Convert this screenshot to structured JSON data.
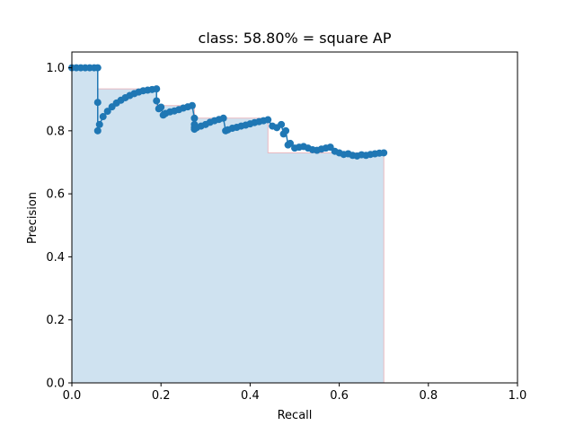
{
  "chart_data": {
    "type": "line",
    "title": "class: 58.80% = square AP",
    "xlabel": "Recall",
    "ylabel": "Precision",
    "xlim": [
      0,
      1
    ],
    "ylim": [
      0,
      1.05
    ],
    "xticks": [
      0.0,
      0.2,
      0.4,
      0.6,
      0.8,
      1.0
    ],
    "yticks": [
      0.0,
      0.2,
      0.4,
      0.6,
      0.8,
      1.0
    ],
    "xtick_labels": [
      "0.0",
      "0.2",
      "0.4",
      "0.6",
      "0.8",
      "1.0"
    ],
    "ytick_labels": [
      "0.0",
      "0.2",
      "0.4",
      "0.6",
      "0.8",
      "1.0"
    ],
    "grid": false,
    "colors": {
      "series": "#1f77b4",
      "fill": "#cfe2f0",
      "envelope": "#e8b8c0"
    },
    "series": [
      {
        "x": [
          0.0,
          0.01,
          0.02,
          0.03,
          0.04,
          0.05,
          0.058,
          0.058,
          0.058,
          0.062,
          0.07,
          0.08,
          0.09,
          0.1,
          0.11,
          0.12,
          0.13,
          0.14,
          0.15,
          0.16,
          0.17,
          0.18,
          0.19,
          0.19,
          0.195,
          0.2,
          0.205,
          0.21,
          0.22,
          0.23,
          0.24,
          0.25,
          0.26,
          0.27,
          0.275,
          0.275,
          0.275,
          0.275,
          0.28,
          0.29,
          0.3,
          0.31,
          0.32,
          0.33,
          0.34,
          0.345,
          0.35,
          0.36,
          0.37,
          0.38,
          0.39,
          0.4,
          0.41,
          0.42,
          0.43,
          0.44,
          0.45,
          0.46,
          0.47,
          0.475,
          0.48,
          0.485,
          0.49,
          0.5,
          0.51,
          0.52,
          0.53,
          0.54,
          0.55,
          0.56,
          0.57,
          0.58,
          0.59,
          0.6,
          0.61,
          0.62,
          0.63,
          0.64,
          0.65,
          0.66,
          0.67,
          0.68,
          0.69,
          0.7
        ],
        "y": [
          1.0,
          1.0,
          1.0,
          1.0,
          1.0,
          1.0,
          1.0,
          0.89,
          0.8,
          0.82,
          0.845,
          0.862,
          0.876,
          0.888,
          0.897,
          0.905,
          0.912,
          0.918,
          0.923,
          0.927,
          0.929,
          0.931,
          0.933,
          0.895,
          0.87,
          0.875,
          0.85,
          0.855,
          0.86,
          0.863,
          0.867,
          0.872,
          0.876,
          0.88,
          0.84,
          0.82,
          0.81,
          0.805,
          0.81,
          0.815,
          0.82,
          0.827,
          0.832,
          0.836,
          0.84,
          0.8,
          0.803,
          0.808,
          0.811,
          0.815,
          0.818,
          0.822,
          0.826,
          0.829,
          0.832,
          0.835,
          0.815,
          0.81,
          0.82,
          0.79,
          0.8,
          0.755,
          0.76,
          0.745,
          0.748,
          0.75,
          0.745,
          0.74,
          0.738,
          0.742,
          0.745,
          0.748,
          0.735,
          0.73,
          0.725,
          0.727,
          0.722,
          0.72,
          0.724,
          0.722,
          0.725,
          0.727,
          0.729,
          0.73
        ]
      }
    ],
    "envelope": {
      "x": [
        0.0,
        0.058,
        0.058,
        0.19,
        0.19,
        0.275,
        0.275,
        0.44,
        0.44,
        0.7,
        0.7
      ],
      "y": [
        1.0,
        1.0,
        0.933,
        0.933,
        0.88,
        0.88,
        0.84,
        0.84,
        0.73,
        0.73,
        0.0
      ]
    }
  }
}
